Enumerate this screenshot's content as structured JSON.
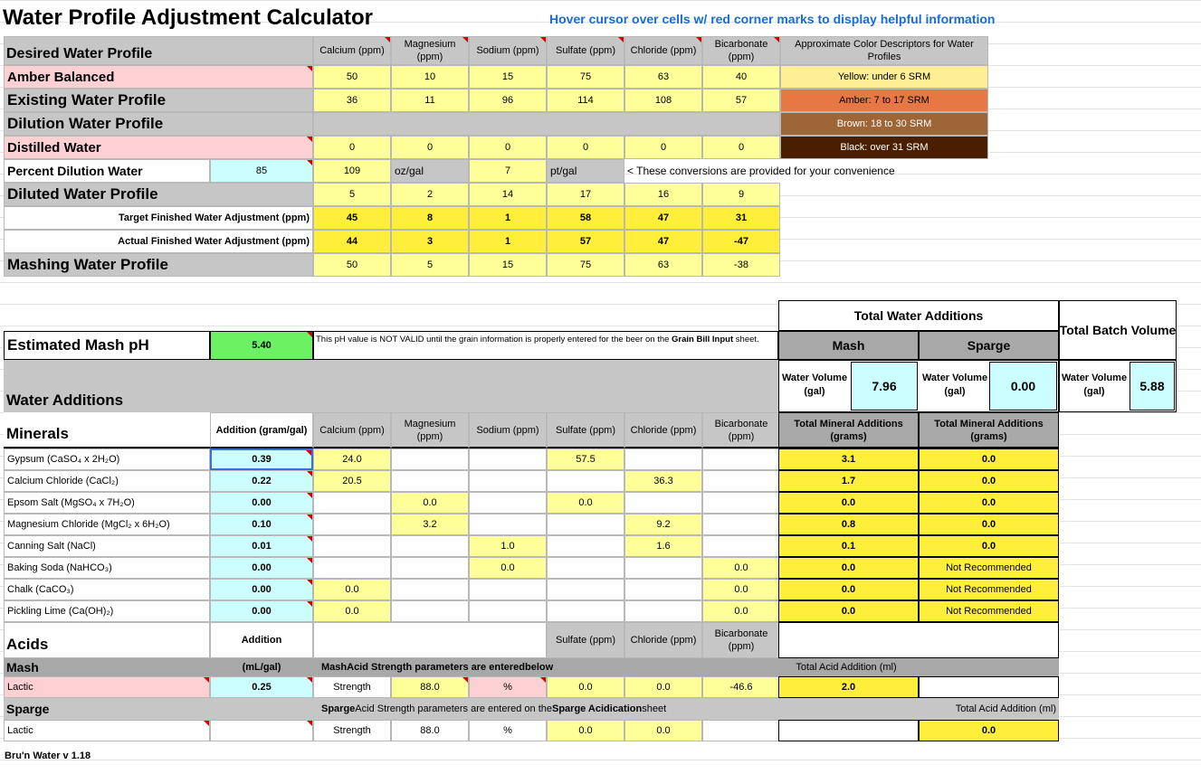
{
  "header": {
    "title": "Water Profile Adjustment Calculator",
    "hint": "Hover cursor over cells w/ red corner marks to display helpful information"
  },
  "ions": {
    "ca": "Calcium (ppm)",
    "mg": "Magnesium (ppm)",
    "na": "Sodium (ppm)",
    "so4": "Sulfate (ppm)",
    "cl": "Chloride (ppm)",
    "hco3": "Bicarbonate (ppm)"
  },
  "color_descriptors": {
    "title": "Approximate Color Descriptors for Water Profiles",
    "yellow": "Yellow: under 6 SRM",
    "amber": "Amber: 7 to 17 SRM",
    "brown": "Brown: 18 to 30 SRM",
    "black": "Black: over 31 SRM",
    "colors": {
      "yellow": "#ffef94",
      "amber": "#e77843",
      "brown": "#9e6536",
      "black": "#4a1f00"
    }
  },
  "profiles": {
    "desired_label": "Desired Water Profile",
    "desired_name": "Amber Balanced",
    "desired_values": [
      "50",
      "10",
      "15",
      "75",
      "63",
      "40"
    ],
    "existing_label": "Existing Water Profile",
    "existing_values": [
      "36",
      "11",
      "96",
      "114",
      "108",
      "57"
    ],
    "dilution_label": "Dilution Water Profile",
    "dilution_name": "Distilled Water",
    "dilution_values": [
      "0",
      "0",
      "0",
      "0",
      "0",
      "0"
    ],
    "percent_label": "Percent Dilution Water",
    "percent_value": "85",
    "conv_oz": "109",
    "conv_oz_unit": "oz/gal",
    "conv_pt": "7",
    "conv_pt_unit": "pt/gal",
    "conv_note": "< These conversions are provided for your convenience",
    "diluted_label": "Diluted Water Profile",
    "diluted_values": [
      "5",
      "2",
      "14",
      "17",
      "16",
      "9"
    ],
    "target_label": "Target Finished Water Adjustment (ppm)",
    "target_values": [
      "45",
      "8",
      "1",
      "58",
      "47",
      "31"
    ],
    "actual_label": "Actual Finished Water Adjustment (ppm)",
    "actual_values": [
      "44",
      "3",
      "1",
      "57",
      "47",
      "-47"
    ],
    "mashing_label": "Mashing Water Profile",
    "mashing_values": [
      "50",
      "5",
      "15",
      "75",
      "63",
      "-38"
    ]
  },
  "totals": {
    "title": "Total Water Additions",
    "batch_title": "Total Batch Volume",
    "mash": "Mash",
    "sparge": "Sparge",
    "water_volume_label": "Water Volume (gal)",
    "mash_volume": "7.96",
    "sparge_volume": "0.00",
    "batch_volume": "5.88"
  },
  "ph": {
    "label": "Estimated Mash pH",
    "value": "5.40",
    "note_a": "This pH value is NOT VALID until the grain information is properly entered for the beer on the ",
    "note_b": "Grain Bill Input",
    "note_c": " sheet."
  },
  "minerals": {
    "section": "Water Additions",
    "label": "Minerals",
    "addition_header": "Addition (gram/gal)",
    "total_header": "Total Mineral Additions (grams)",
    "rows": [
      {
        "name": "Gypsum (CaSO₄ x 2H₂O)",
        "add": "0.39",
        "ca": "24.0",
        "mg": "",
        "na": "",
        "so4": "57.5",
        "cl": "",
        "hco3": "",
        "mash": "3.1",
        "sparge": "0.0"
      },
      {
        "name": "Calcium Chloride (CaCl₂)",
        "add": "0.22",
        "ca": "20.5",
        "mg": "",
        "na": "",
        "so4": "",
        "cl": "36.3",
        "hco3": "",
        "mash": "1.7",
        "sparge": "0.0"
      },
      {
        "name": "Epsom Salt (MgSO₄ x 7H₂O)",
        "add": "0.00",
        "ca": "",
        "mg": "0.0",
        "na": "",
        "so4": "0.0",
        "cl": "",
        "hco3": "",
        "mash": "0.0",
        "sparge": "0.0"
      },
      {
        "name": "Magnesium Chloride (MgCl₂ x 6H₂O)",
        "add": "0.10",
        "ca": "",
        "mg": "3.2",
        "na": "",
        "so4": "",
        "cl": "9.2",
        "hco3": "",
        "mash": "0.8",
        "sparge": "0.0"
      },
      {
        "name": "Canning Salt (NaCl)",
        "add": "0.01",
        "ca": "",
        "mg": "",
        "na": "1.0",
        "so4": "",
        "cl": "1.6",
        "hco3": "",
        "mash": "0.1",
        "sparge": "0.0"
      },
      {
        "name": "Baking Soda (NaHCO₃)",
        "add": "0.00",
        "ca": "",
        "mg": "",
        "na": "0.0",
        "so4": "",
        "cl": "",
        "hco3": "0.0",
        "mash": "0.0",
        "sparge": "Not Recommended"
      },
      {
        "name": "Chalk (CaCO₃)",
        "add": "0.00",
        "ca": "0.0",
        "mg": "",
        "na": "",
        "so4": "",
        "cl": "",
        "hco3": "0.0",
        "mash": "0.0",
        "sparge": "Not Recommended"
      },
      {
        "name": "Pickling Lime (Ca(OH)₂)",
        "add": "0.00",
        "ca": "0.0",
        "mg": "",
        "na": "",
        "so4": "",
        "cl": "",
        "hco3": "0.0",
        "mash": "0.0",
        "sparge": "Not Recommended"
      }
    ]
  },
  "acids": {
    "label": "Acids",
    "addition": "Addition",
    "mash_label": "Mash",
    "unit": "(mL/gal)",
    "mash_note_a": "Mash",
    "mash_note_b": " Acid Strength parameters are entered ",
    "mash_note_c": "below",
    "total_label": "Total Acid Addition (ml)",
    "mash_acid": "Lactic",
    "mash_add": "0.25",
    "strength_label": "Strength",
    "mash_strength": "88.0",
    "percent": "%",
    "mash_so4": "0.0",
    "mash_cl": "0.0",
    "mash_hco3": "-46.6",
    "mash_total": "2.0",
    "sparge_label": "Sparge",
    "sparge_note_a": "Sparge",
    "sparge_note_b": " Acid Strength parameters are entered on the ",
    "sparge_note_c": "Sparge Acidication",
    "sparge_note_d": " sheet",
    "sparge_acid": "Lactic",
    "sparge_strength": "88.0",
    "sparge_so4": "0.0",
    "sparge_cl": "0.0",
    "sparge_total": "0.0"
  },
  "footer": {
    "version": "Bru'n Water v 1.18"
  }
}
